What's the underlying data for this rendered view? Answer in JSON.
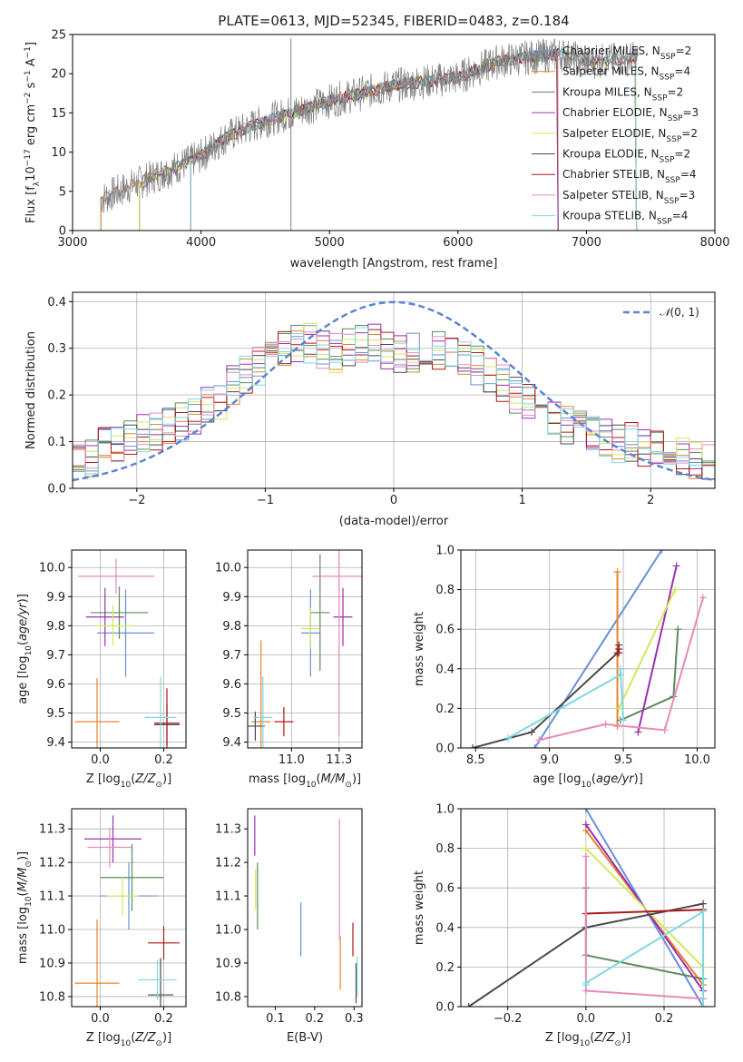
{
  "colors": {
    "blue": "#6a8fd8",
    "orange": "#e8842a",
    "green": "#5d8a5d",
    "purple": "#9b30b0",
    "yellow": "#d4e85a",
    "dark": "#4a4a4a",
    "red": "#b01818",
    "pink": "#e88ab8",
    "cyan": "#7fd8e0",
    "normal": "#5b84d6"
  },
  "legend_top": [
    "Chabrier MILES, N_SSP=2",
    "Salpeter MILES, N_SSP=4",
    "Kroupa MILES, N_SSP=2",
    "Chabrier ELODIE, N_SSP=3",
    "Salpeter ELODIE, N_SSP=2",
    "Kroupa ELODIE, N_SSP=2",
    "Chabrier STELIB, N_SSP=4",
    "Salpeter STELIB, N_SSP=3",
    "Kroupa STELIB, N_SSP=4"
  ],
  "chart_data": [
    {
      "id": "spectrum",
      "type": "line",
      "title": "PLATE=0613, MJD=52345, FIBERID=0483, z=0.184",
      "xlabel": "wavelength [Angstrom, rest frame]",
      "ylabel": "Flux [f_λ 10^-17 erg cm^-2 s^-1 A^-1]",
      "xlim": [
        3000,
        8000
      ],
      "ylim": [
        0,
        25
      ],
      "xticks": [
        3000,
        4000,
        5000,
        6000,
        7000,
        8000
      ],
      "yticks": [
        0,
        5,
        10,
        15,
        20,
        25
      ],
      "grid": false,
      "legend": "top-right",
      "continuum": {
        "x": [
          3220,
          3500,
          3800,
          4000,
          4200,
          4500,
          5000,
          5500,
          6000,
          6300,
          6500,
          6800,
          7000,
          7400
        ],
        "y": [
          4,
          6,
          8,
          9.5,
          12,
          14,
          16.5,
          18.5,
          19.5,
          21.5,
          22,
          22.5,
          21.5,
          22
        ]
      },
      "starts": [
        3220,
        3220,
        3520,
        3520,
        3520,
        3920,
        3920,
        3920,
        3920
      ],
      "ends": [
        6780,
        6780,
        6780,
        6780,
        7390,
        7390,
        7390,
        7390,
        7390
      ],
      "spike": {
        "x": 4700,
        "y": 24.5
      }
    },
    {
      "id": "residuals",
      "type": "line",
      "xlabel": "(data-model)/error",
      "ylabel": "Normed distribution",
      "xlim": [
        -2.5,
        2.5
      ],
      "ylim": [
        0,
        0.42
      ],
      "xticks": [
        -2,
        -1,
        0,
        1,
        2
      ],
      "yticks": [
        0,
        0.1,
        0.2,
        0.3,
        0.4
      ],
      "legend": "N(0,1)",
      "legend_loc": "top-right",
      "grid": true,
      "hist_x": [
        -2.5,
        -2.4,
        -2.3,
        -2.2,
        -2.1,
        -2.0,
        -1.9,
        -1.8,
        -1.7,
        -1.6,
        -1.5,
        -1.4,
        -1.3,
        -1.2,
        -1.1,
        -1.0,
        -0.9,
        -0.8,
        -0.7,
        -0.6,
        -0.5,
        -0.4,
        -0.3,
        -0.2,
        -0.1,
        0.0,
        0.1,
        0.2,
        0.3,
        0.4,
        0.5,
        0.6,
        0.7,
        0.8,
        0.9,
        1.0,
        1.1,
        1.2,
        1.3,
        1.4,
        1.5,
        1.6,
        1.7,
        1.8,
        1.9,
        2.0,
        2.1,
        2.2,
        2.3,
        2.4
      ],
      "hist_base": [
        0.06,
        0.07,
        0.09,
        0.1,
        0.1,
        0.12,
        0.12,
        0.13,
        0.14,
        0.16,
        0.18,
        0.19,
        0.22,
        0.24,
        0.26,
        0.28,
        0.3,
        0.31,
        0.31,
        0.3,
        0.29,
        0.3,
        0.31,
        0.31,
        0.3,
        0.29,
        0.29,
        0.3,
        0.3,
        0.29,
        0.28,
        0.26,
        0.24,
        0.22,
        0.2,
        0.19,
        0.17,
        0.16,
        0.14,
        0.13,
        0.12,
        0.11,
        0.1,
        0.1,
        0.09,
        0.08,
        0.08,
        0.07,
        0.06,
        0.05
      ]
    },
    {
      "id": "age-vs-Z",
      "type": "scatter",
      "xlabel": "Z [log10(Z/Z⊙)]",
      "ylabel": "age  [log10(age/yr)]",
      "xlim": [
        -0.09,
        0.27
      ],
      "ylim": [
        9.38,
        10.06
      ],
      "xticks": [
        0.0,
        0.2
      ],
      "yticks": [
        9.4,
        9.5,
        9.6,
        9.7,
        9.8,
        9.9,
        10.0
      ],
      "grid": true,
      "points": [
        {
          "c": "blue",
          "x": 0.08,
          "xe": 0.09,
          "y": 9.775,
          "ye": 0.15
        },
        {
          "c": "orange",
          "x": -0.01,
          "xe": 0.07,
          "y": 9.47,
          "ye": 0.15
        },
        {
          "c": "green",
          "x": 0.06,
          "xe": 0.09,
          "y": 9.845,
          "ye": 0.09
        },
        {
          "c": "purple",
          "x": 0.015,
          "xe": 0.06,
          "y": 9.83,
          "ye": 0.1
        },
        {
          "c": "yellow",
          "x": 0.04,
          "xe": 0.06,
          "y": 9.8,
          "ye": 0.07
        },
        {
          "c": "dark",
          "x": 0.21,
          "xe": 0.04,
          "y": 9.46,
          "ye": 0.07
        },
        {
          "c": "red",
          "x": 0.21,
          "xe": 0.04,
          "y": 9.465,
          "ye": 0.12
        },
        {
          "c": "pink",
          "x": 0.05,
          "xe": 0.12,
          "y": 9.97,
          "ye": 0.06
        },
        {
          "c": "cyan",
          "x": 0.19,
          "xe": 0.05,
          "y": 9.485,
          "ye": 0.14
        }
      ]
    },
    {
      "id": "age-vs-mass",
      "type": "scatter",
      "xlabel": "mass [log10(M/M⊙)]",
      "ylabel": "",
      "xlim": [
        10.77,
        11.37
      ],
      "ylim": [
        9.38,
        10.06
      ],
      "xticks": [
        11.0,
        11.25
      ],
      "yticks": [
        9.4,
        9.5,
        9.6,
        9.7,
        9.8,
        9.9,
        10.0
      ],
      "grid": true,
      "points": [
        {
          "c": "blue",
          "x": 11.1,
          "xe": 0.05,
          "y": 9.775,
          "ye": 0.15
        },
        {
          "c": "orange",
          "x": 10.84,
          "xe": 0.05,
          "y": 9.47,
          "ye": 0.28
        },
        {
          "c": "green",
          "x": 11.15,
          "xe": 0.05,
          "y": 9.845,
          "ye": 0.2
        },
        {
          "c": "purple",
          "x": 11.27,
          "xe": 0.05,
          "y": 9.83,
          "ye": 0.1
        },
        {
          "c": "yellow",
          "x": 11.1,
          "xe": 0.05,
          "y": 9.79,
          "ye": 0.07
        },
        {
          "c": "dark",
          "x": 10.81,
          "xe": 0.05,
          "y": 9.455,
          "ye": 0.05
        },
        {
          "c": "red",
          "x": 10.96,
          "xe": 0.05,
          "y": 9.47,
          "ye": 0.05
        },
        {
          "c": "pink",
          "x": 11.25,
          "xe": 0.14,
          "y": 9.97,
          "ye": 0.55
        },
        {
          "c": "cyan",
          "x": 10.85,
          "xe": 0.05,
          "y": 9.485,
          "ye": 0.14
        }
      ]
    },
    {
      "id": "weight-vs-age",
      "type": "line",
      "xlabel": "age  [log10(age/yr)]",
      "ylabel": "mass weight",
      "xlim": [
        8.4,
        10.12
      ],
      "ylim": [
        0,
        1.0
      ],
      "xticks": [
        8.5,
        9.0,
        9.5,
        10.0
      ],
      "yticks": [
        0.0,
        0.2,
        0.4,
        0.6,
        0.8,
        1.0
      ],
      "grid": true,
      "series": [
        {
          "c": "blue",
          "x": [
            8.9,
            9.76
          ],
          "y": [
            0.0,
            1.0
          ]
        },
        {
          "c": "orange",
          "x": [
            9.46,
            9.46
          ],
          "y": [
            0.11,
            0.89
          ]
        },
        {
          "c": "green",
          "x": [
            9.48,
            9.84,
            9.87
          ],
          "y": [
            0.14,
            0.26,
            0.6
          ]
        },
        {
          "c": "purple",
          "x": [
            9.6,
            9.86
          ],
          "y": [
            0.08,
            0.92
          ]
        },
        {
          "c": "yellow",
          "x": [
            9.47,
            9.85
          ],
          "y": [
            0.2,
            0.8
          ]
        },
        {
          "c": "dark",
          "x": [
            8.48,
            8.88,
            9.46,
            9.47
          ],
          "y": [
            0.0,
            0.08,
            0.48,
            0.52
          ]
        },
        {
          "c": "red",
          "x": [
            9.47,
            9.47
          ],
          "y": [
            0.48,
            0.5
          ]
        },
        {
          "c": "pink",
          "x": [
            8.93,
            9.38,
            9.78,
            10.04
          ],
          "y": [
            0.04,
            0.12,
            0.09,
            0.76
          ]
        },
        {
          "c": "cyan",
          "x": [
            8.72,
            9.48,
            9.48,
            9.5
          ],
          "y": [
            0.05,
            0.37,
            0.4,
            0.14
          ]
        }
      ]
    },
    {
      "id": "mass-vs-Z",
      "type": "scatter",
      "xlabel": "Z [log10(Z/Z⊙)]",
      "ylabel": "mass [log10(M/M⊙)]",
      "xlim": [
        -0.09,
        0.27
      ],
      "ylim": [
        10.77,
        11.36
      ],
      "xticks": [
        0.0,
        0.2
      ],
      "yticks": [
        10.8,
        10.9,
        11.0,
        11.1,
        11.2,
        11.3
      ],
      "grid": true,
      "points": [
        {
          "c": "blue",
          "x": 0.09,
          "xe": 0.09,
          "y": 11.1,
          "ye": 0.1
        },
        {
          "c": "orange",
          "x": -0.01,
          "xe": 0.07,
          "y": 10.84,
          "ye": 0.19
        },
        {
          "c": "green",
          "x": 0.1,
          "xe": 0.1,
          "y": 11.155,
          "ye": 0.1
        },
        {
          "c": "purple",
          "x": 0.04,
          "xe": 0.09,
          "y": 11.27,
          "ye": 0.07
        },
        {
          "c": "yellow",
          "x": 0.07,
          "xe": 0.05,
          "y": 11.1,
          "ye": 0.06
        },
        {
          "c": "dark",
          "x": 0.19,
          "xe": 0.04,
          "y": 10.805,
          "ye": 0.11
        },
        {
          "c": "red",
          "x": 0.2,
          "xe": 0.05,
          "y": 10.96,
          "ye": 0.05
        },
        {
          "c": "pink",
          "x": 0.03,
          "xe": 0.07,
          "y": 11.245,
          "ye": 0.06
        },
        {
          "c": "cyan",
          "x": 0.18,
          "xe": 0.06,
          "y": 10.85,
          "ye": 0.06
        }
      ]
    },
    {
      "id": "mass-vs-ebv",
      "type": "scatter",
      "xlabel": "E(B-V)",
      "ylabel": "",
      "xlim": [
        0.03,
        0.32
      ],
      "ylim": [
        10.77,
        11.36
      ],
      "xticks": [
        0.1,
        0.2,
        0.3
      ],
      "yticks": [
        10.8,
        10.9,
        11.0,
        11.1,
        11.2,
        11.3
      ],
      "grid": false,
      "points": [
        {
          "c": "blue",
          "x": 0.165,
          "xe": 0,
          "y": 11.0,
          "ye": 0.08
        },
        {
          "c": "orange",
          "x": 0.265,
          "xe": 0,
          "y": 10.9,
          "ye": 0.08
        },
        {
          "c": "green",
          "x": 0.055,
          "xe": 0,
          "y": 11.1,
          "ye": 0.1
        },
        {
          "c": "purple",
          "x": 0.048,
          "xe": 0,
          "y": 11.28,
          "ye": 0.06
        },
        {
          "c": "yellow",
          "x": 0.05,
          "xe": 0,
          "y": 11.12,
          "ye": 0.06
        },
        {
          "c": "dark",
          "x": 0.305,
          "xe": 0,
          "y": 10.84,
          "ye": 0.06
        },
        {
          "c": "red",
          "x": 0.297,
          "xe": 0,
          "y": 10.97,
          "ye": 0.05
        },
        {
          "c": "pink",
          "x": 0.263,
          "xe": 0,
          "y": 11.15,
          "ye": 0.18
        },
        {
          "c": "cyan",
          "x": 0.308,
          "xe": 0,
          "y": 10.86,
          "ye": 0.06
        }
      ]
    },
    {
      "id": "weight-vs-Z",
      "type": "line",
      "xlabel": "Z [log10(Z/Z⊙)]",
      "ylabel": "mass weight",
      "xlim": [
        -0.32,
        0.33
      ],
      "ylim": [
        0,
        1.0
      ],
      "xticks": [
        -0.2,
        0.0,
        0.2
      ],
      "yticks": [
        0.0,
        0.2,
        0.4,
        0.6,
        0.8,
        1.0
      ],
      "grid": true,
      "series": [
        {
          "c": "blue",
          "x": [
            0.0,
            0.3
          ],
          "y": [
            1.0,
            0.0
          ]
        },
        {
          "c": "orange",
          "x": [
            0.0,
            0.3
          ],
          "y": [
            0.89,
            0.11
          ]
        },
        {
          "c": "green",
          "x": [
            0.0,
            0.0,
            0.3
          ],
          "y": [
            0.6,
            0.26,
            0.14
          ]
        },
        {
          "c": "purple",
          "x": [
            0.0,
            0.3
          ],
          "y": [
            0.92,
            0.08
          ]
        },
        {
          "c": "yellow",
          "x": [
            0.0,
            0.3
          ],
          "y": [
            0.8,
            0.2
          ]
        },
        {
          "c": "dark",
          "x": [
            -0.3,
            0.0,
            0.3
          ],
          "y": [
            0.0,
            0.4,
            0.52
          ]
        },
        {
          "c": "red",
          "x": [
            0.0,
            0.3
          ],
          "y": [
            0.47,
            0.49
          ]
        },
        {
          "c": "pink",
          "x": [
            0.0,
            0.0,
            0.3
          ],
          "y": [
            0.76,
            0.08,
            0.04
          ]
        },
        {
          "c": "cyan",
          "x": [
            0.0,
            0.0,
            0.3,
            0.3
          ],
          "y": [
            0.11,
            0.12,
            0.48,
            0.0
          ]
        }
      ]
    }
  ]
}
